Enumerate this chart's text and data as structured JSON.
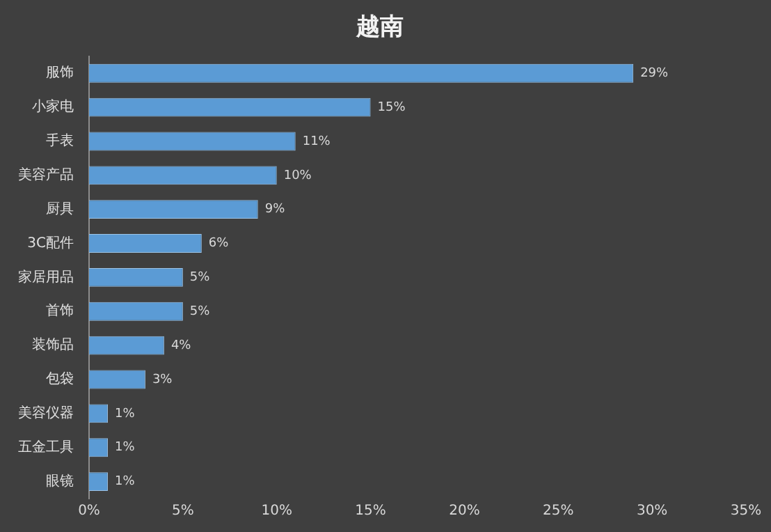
{
  "chart_data": {
    "type": "bar",
    "orientation": "horizontal",
    "title": "越南",
    "categories": [
      "服饰",
      "小家电",
      "手表",
      "美容产品",
      "厨具",
      "3C配件",
      "家居用品",
      "首饰",
      "装饰品",
      "包袋",
      "美容仪器",
      "五金工具",
      "眼镜"
    ],
    "values": [
      29,
      15,
      11,
      10,
      9,
      6,
      5,
      5,
      4,
      3,
      1,
      1,
      1
    ],
    "value_labels": [
      "29%",
      "15%",
      "11%",
      "10%",
      "9%",
      "6%",
      "5%",
      "5%",
      "4%",
      "3%",
      "1%",
      "1%",
      "1%"
    ],
    "color": "#5b9bd5",
    "xlim": [
      0,
      35
    ],
    "xticks": [
      {
        "value": 0,
        "label": "0%"
      },
      {
        "value": 5,
        "label": "5%"
      },
      {
        "value": 10,
        "label": "10%"
      },
      {
        "value": 15,
        "label": "15%"
      },
      {
        "value": 20,
        "label": "20%"
      },
      {
        "value": 25,
        "label": "25%"
      },
      {
        "value": 30,
        "label": "30%"
      },
      {
        "value": 35,
        "label": "35%"
      }
    ],
    "grid": false,
    "legend": false
  }
}
